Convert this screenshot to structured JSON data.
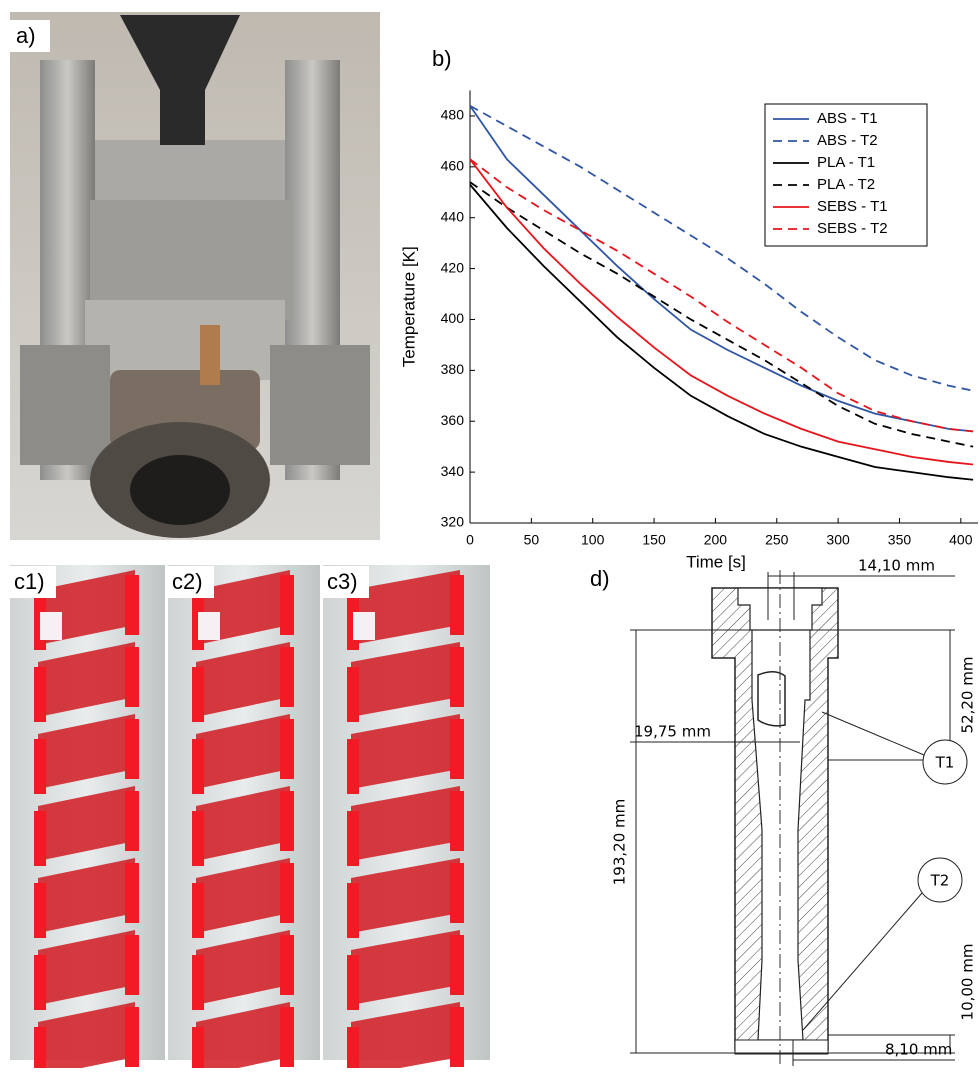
{
  "panels": {
    "a": "a)",
    "c1": "c1)",
    "c2": "c2)",
    "c3": "c3)",
    "d": "d)"
  },
  "chart_data": {
    "type": "line",
    "label": "b)",
    "x_label": "Time [s]",
    "y_label": "Temperature [K]",
    "x": [
      0,
      30,
      60,
      90,
      120,
      150,
      180,
      210,
      240,
      270,
      300,
      330,
      360,
      390,
      410
    ],
    "series": [
      {
        "name": "ABS - T1",
        "color": "#2f55a4",
        "dash": false,
        "values": [
          484,
          463,
          449,
          435,
          421,
          408,
          396,
          388,
          381,
          374,
          368,
          363,
          360,
          357,
          356
        ]
      },
      {
        "name": "ABS - T2",
        "color": "#2f55a4",
        "dash": true,
        "values": [
          484,
          476,
          468,
          460,
          451,
          442,
          433,
          424,
          414,
          403,
          393,
          384,
          378,
          374,
          372
        ]
      },
      {
        "name": "PLA - T1",
        "color": "#000000",
        "dash": false,
        "values": [
          453,
          436,
          421,
          407,
          393,
          381,
          370,
          362,
          355,
          350,
          346,
          342,
          340,
          338,
          337
        ]
      },
      {
        "name": "PLA - T2",
        "color": "#000000",
        "dash": true,
        "values": [
          454,
          444,
          435,
          426,
          418,
          409,
          400,
          392,
          384,
          375,
          366,
          359,
          355,
          352,
          350
        ]
      },
      {
        "name": "SEBS - T1",
        "color": "#e8141b",
        "dash": false,
        "values": [
          463,
          444,
          428,
          414,
          401,
          389,
          378,
          370,
          363,
          357,
          352,
          349,
          346,
          344,
          343
        ]
      },
      {
        "name": "SEBS - T2",
        "color": "#e8141b",
        "dash": true,
        "values": [
          463,
          452,
          443,
          435,
          427,
          418,
          409,
          399,
          390,
          381,
          371,
          364,
          360,
          357,
          356
        ]
      }
    ],
    "xlim": [
      0,
      414
    ],
    "ylim": [
      320,
      490
    ],
    "xticks": [
      0,
      50,
      100,
      150,
      200,
      250,
      300,
      350,
      400
    ],
    "yticks": [
      320,
      340,
      360,
      380,
      400,
      420,
      440,
      460,
      480
    ],
    "legend": "upper right",
    "grid": false
  },
  "drawing": {
    "dim_top": "14,10 mm",
    "dim_upper": "52,20 mm",
    "dim_bore": "19,75 mm",
    "dim_length": "193,20 mm",
    "dim_lower": "10,00 mm",
    "dim_bottom": "8,10 mm",
    "t1": "T1",
    "t2": "T2"
  }
}
